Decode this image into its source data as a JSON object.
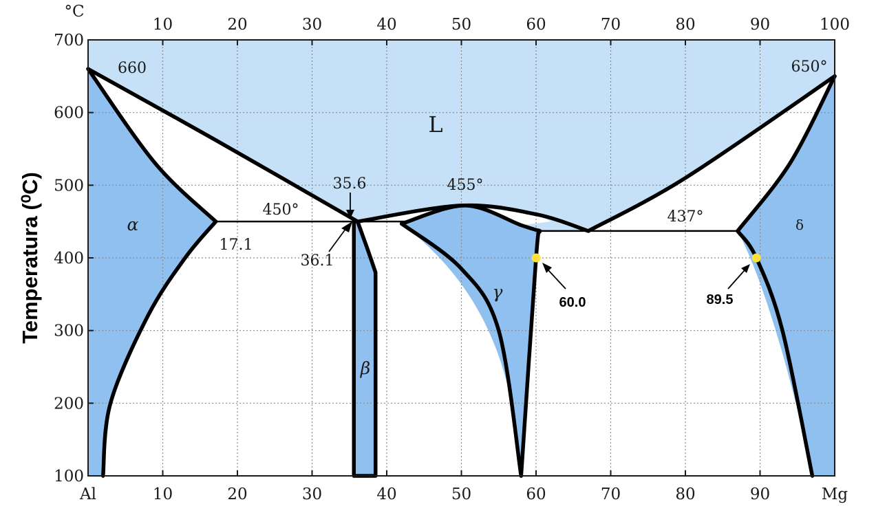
{
  "chart_data": {
    "type": "phase-diagram",
    "title": "",
    "ylabel": "Temperatura (⁰C)",
    "top_unit": "°C",
    "x_range": [
      0,
      100
    ],
    "y_range": [
      100,
      700
    ],
    "x_top_ticks": [
      "10",
      "20",
      "30",
      "40",
      "50",
      "60",
      "70",
      "80",
      "90",
      "100"
    ],
    "x_bottom_ticks": [
      "Al",
      "10",
      "20",
      "30",
      "40",
      "50",
      "60",
      "70",
      "80",
      "90",
      "Mg"
    ],
    "y_ticks": [
      "100",
      "200",
      "300",
      "400",
      "500",
      "600",
      "700"
    ],
    "grid": true,
    "colors": {
      "liquid": "#c5e0f7",
      "solid": "#8fc0ef",
      "line": "#000000",
      "marker": "#ffe03a"
    },
    "regions": [
      {
        "name": "L",
        "label": "L"
      },
      {
        "name": "alpha",
        "label": "α"
      },
      {
        "name": "beta",
        "label": "β"
      },
      {
        "name": "gamma",
        "label": "γ"
      },
      {
        "name": "delta",
        "label": "δ"
      }
    ],
    "annotations": [
      {
        "text": "660",
        "x": 3,
        "y": 660
      },
      {
        "text": "650°",
        "x": 98,
        "y": 650
      },
      {
        "text": "450°",
        "x": 26.4,
        "y": 450
      },
      {
        "text": "455°",
        "x": 52.3,
        "y": 455
      },
      {
        "text": "437°",
        "x": 80.7,
        "y": 437
      },
      {
        "text": "35.6",
        "x": 35.6,
        "y": 450
      },
      {
        "text": "36.1",
        "x": 36.1,
        "y": 450
      },
      {
        "text": "17.1",
        "x": 17.1,
        "y": 450
      }
    ],
    "markers": [
      {
        "label": "60.0",
        "x": 60.0,
        "y": 400
      },
      {
        "label": "89.5",
        "x": 89.5,
        "y": 400
      }
    ],
    "invariant_lines": [
      {
        "y": 450,
        "x_from": 17.1,
        "x_to": 43
      },
      {
        "y": 437,
        "x_from": 60.5,
        "x_to": 87
      }
    ],
    "boundaries": {
      "alpha_liquidus": [
        [
          0,
          660
        ],
        [
          17.1,
          562
        ],
        [
          36.1,
          450
        ]
      ],
      "alpha_solidus": [
        [
          0,
          660
        ],
        [
          9,
          530
        ],
        [
          17.1,
          450
        ]
      ],
      "alpha_solvus": [
        [
          17.1,
          450
        ],
        [
          13,
          400
        ],
        [
          8,
          320
        ],
        [
          3,
          200
        ],
        [
          2,
          100
        ]
      ],
      "beta": [
        [
          35.6,
          450
        ],
        [
          35.6,
          100
        ],
        [
          38.5,
          100
        ],
        [
          38.5,
          380
        ],
        [
          37.5,
          410
        ],
        [
          36.1,
          450
        ]
      ],
      "gamma_liquidus": [
        [
          36.1,
          450
        ],
        [
          50,
          472
        ],
        [
          60,
          460
        ],
        [
          67,
          437
        ]
      ],
      "gamma_left": [
        [
          42,
          447
        ],
        [
          50,
          385
        ],
        [
          55,
          300
        ],
        [
          58,
          100
        ]
      ],
      "gamma_top": [
        [
          42,
          447
        ],
        [
          50.5,
          472
        ],
        [
          58,
          445
        ],
        [
          60.5,
          437
        ]
      ],
      "gamma_right": [
        [
          60.5,
          437
        ],
        [
          60,
          400
        ],
        [
          58,
          100
        ]
      ],
      "delta_liquidus": [
        [
          67,
          437
        ],
        [
          80,
          510
        ],
        [
          100,
          650
        ]
      ],
      "delta_solidus": [
        [
          87,
          437
        ],
        [
          94,
          530
        ],
        [
          100,
          650
        ]
      ],
      "delta_solvus": [
        [
          87,
          437
        ],
        [
          89.5,
          400
        ],
        [
          93,
          300
        ],
        [
          97,
          100
        ]
      ]
    }
  }
}
